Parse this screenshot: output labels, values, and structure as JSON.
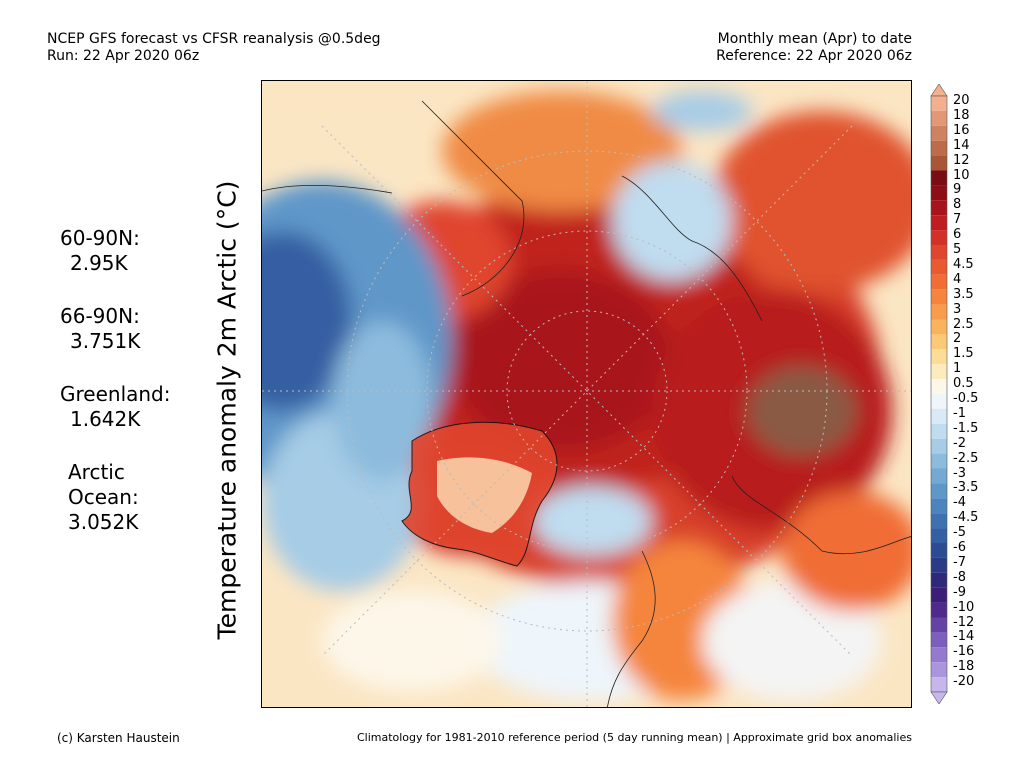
{
  "header": {
    "left_line1": "NCEP GFS forecast vs CFSR reanalysis @0.5deg",
    "left_line2": "Run: 22 Apr 2020 06z",
    "right_line1": "Monthly mean (Apr) to date",
    "right_line2": "Reference: 22 Apr 2020 06z"
  },
  "axis_label": "Temperature anomaly 2m Arctic (°C)",
  "stats": [
    {
      "region": "60-90N:",
      "value": "2.95K"
    },
    {
      "region": "66-90N:",
      "value": "3.751K"
    },
    {
      "region": "Greenland:",
      "value": "1.642K"
    },
    {
      "region_lines": [
        "Arctic",
        "Ocean:"
      ],
      "value": "3.052K"
    }
  ],
  "colorbar": {
    "labels": [
      "20",
      "18",
      "16",
      "14",
      "12",
      "10",
      "9",
      "8",
      "7",
      "6",
      "5",
      "4.5",
      "4",
      "3.5",
      "3",
      "2.5",
      "2",
      "1.5",
      "1",
      "0.5",
      "-0.5",
      "-1",
      "-1.5",
      "-2",
      "-2.5",
      "-3",
      "-3.5",
      "-4",
      "-4.5",
      "-5",
      "-6",
      "-7",
      "-8",
      "-9",
      "-10",
      "-12",
      "-14",
      "-16",
      "-18",
      "-20"
    ],
    "colors": [
      "#f3b08f",
      "#e29877",
      "#cf8260",
      "#bd6b4a",
      "#a95636",
      "#7a0c14",
      "#8e0e16",
      "#a8141b",
      "#c01d22",
      "#d33028",
      "#e0452d",
      "#ea5a31",
      "#f06d36",
      "#f5853e",
      "#f89b4b",
      "#fab35d",
      "#fbc977",
      "#fcdd98",
      "#fdebc0",
      "#fdf7ea",
      "#eef5fb",
      "#d8eaf6",
      "#c0dcef",
      "#a6cce6",
      "#8cbbdd",
      "#74a9d3",
      "#5f97c9",
      "#4d84bd",
      "#3f71b0",
      "#345fa2",
      "#2b4c94",
      "#2a3a86",
      "#2e2a79",
      "#3b1f77",
      "#4f2a8c",
      "#6543a6",
      "#7c5ebd",
      "#9479cf",
      "#ab95dd",
      "#c6b6ec"
    ]
  },
  "footer": {
    "left": "(c) Karsten Haustein",
    "right": "Climatology for 1981-2010 reference period (5 day running mean) | Approximate grid box anomalies"
  }
}
